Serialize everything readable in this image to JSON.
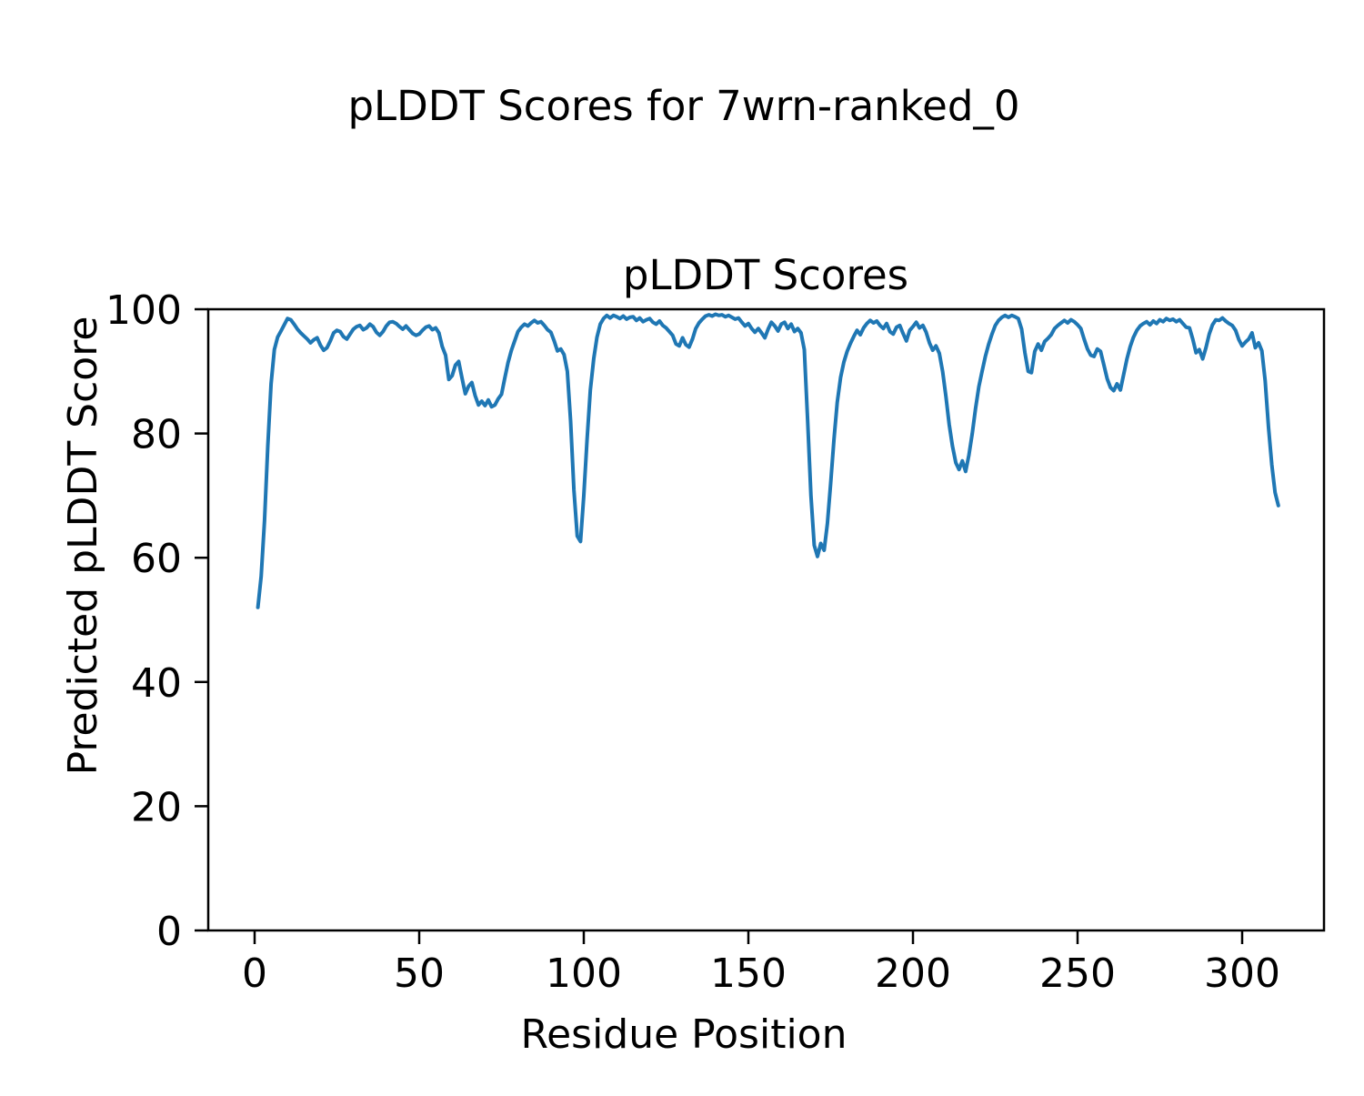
{
  "figure_title": "pLDDT Scores for 7wrn-ranked_0",
  "chart_data": {
    "type": "line",
    "title": "pLDDT Scores",
    "xlabel": "Residue Position",
    "ylabel": "Predicted pLDDT Score",
    "x_ticks": [
      0,
      50,
      100,
      150,
      200,
      250,
      300
    ],
    "y_ticks": [
      0,
      20,
      40,
      60,
      80,
      100
    ],
    "xlim": [
      -14.5,
      326.5
    ],
    "ylim": [
      0,
      100
    ],
    "grid": false,
    "legend": "none",
    "line_color": "#1f77b4",
    "series": [
      {
        "name": "pLDDT",
        "x_start": 1,
        "y": [
          52.0,
          57.0,
          66.0,
          78.0,
          88.0,
          93.5,
          95.5,
          96.5,
          97.5,
          98.5,
          98.3,
          97.6,
          96.8,
          96.2,
          95.7,
          95.2,
          94.6,
          95.1,
          95.4,
          94.2,
          93.4,
          93.8,
          94.9,
          96.2,
          96.6,
          96.4,
          95.6,
          95.2,
          96.0,
          96.8,
          97.2,
          97.4,
          96.7,
          97.0,
          97.6,
          97.2,
          96.3,
          95.8,
          96.4,
          97.3,
          97.9,
          98.0,
          97.7,
          97.2,
          96.8,
          97.3,
          96.7,
          96.1,
          95.8,
          96.0,
          96.6,
          97.1,
          97.3,
          96.7,
          97.0,
          96.2,
          94.0,
          92.6,
          88.7,
          89.3,
          91.0,
          91.6,
          88.9,
          86.4,
          87.6,
          88.2,
          86.1,
          84.6,
          85.2,
          84.5,
          85.4,
          84.3,
          84.6,
          85.6,
          86.3,
          88.9,
          91.4,
          93.4,
          94.9,
          96.4,
          97.1,
          97.6,
          97.3,
          97.8,
          98.2,
          97.8,
          98.0,
          97.4,
          96.7,
          96.3,
          94.9,
          93.3,
          93.6,
          92.7,
          90.0,
          82.0,
          71.0,
          63.5,
          62.6,
          70.0,
          79.0,
          87.0,
          92.0,
          95.5,
          97.6,
          98.5,
          99.0,
          98.6,
          99.0,
          98.8,
          98.5,
          98.9,
          98.4,
          98.7,
          98.8,
          98.2,
          98.6,
          98.0,
          98.3,
          98.5,
          97.9,
          97.6,
          98.1,
          97.4,
          97.0,
          96.4,
          95.8,
          94.4,
          94.1,
          95.4,
          94.3,
          93.9,
          95.2,
          96.9,
          97.8,
          98.4,
          98.9,
          99.1,
          98.9,
          99.2,
          99.0,
          99.1,
          98.8,
          99.0,
          98.7,
          98.4,
          98.6,
          97.9,
          97.3,
          97.7,
          96.9,
          96.3,
          96.9,
          96.2,
          95.4,
          96.8,
          97.9,
          97.3,
          96.5,
          97.6,
          97.9,
          96.9,
          97.6,
          96.4,
          96.9,
          96.2,
          93.5,
          82.0,
          70.0,
          62.0,
          60.2,
          62.3,
          61.2,
          65.5,
          72.0,
          79.0,
          85.0,
          89.0,
          91.5,
          93.2,
          94.5,
          95.6,
          96.6,
          95.9,
          97.0,
          97.7,
          98.2,
          97.8,
          98.1,
          97.4,
          96.9,
          97.7,
          96.4,
          96.0,
          97.1,
          97.4,
          96.1,
          94.9,
          96.6,
          97.2,
          97.9,
          97.0,
          97.4,
          96.3,
          94.6,
          93.4,
          94.1,
          92.9,
          90.0,
          86.0,
          81.5,
          78.0,
          75.3,
          74.2,
          75.6,
          73.9,
          76.5,
          80.0,
          84.0,
          87.5,
          90.0,
          92.4,
          94.4,
          96.0,
          97.4,
          98.2,
          98.7,
          99.0,
          98.7,
          99.0,
          98.8,
          98.5,
          96.8,
          93.0,
          90.0,
          89.8,
          93.2,
          94.4,
          93.4,
          94.8,
          95.3,
          95.9,
          96.9,
          97.4,
          97.8,
          98.2,
          97.8,
          98.3,
          98.0,
          97.5,
          96.9,
          95.2,
          93.6,
          92.6,
          92.4,
          93.6,
          93.2,
          91.0,
          88.8,
          87.4,
          86.9,
          88.0,
          87.0,
          89.5,
          92.0,
          94.0,
          95.5,
          96.6,
          97.3,
          97.7,
          98.0,
          97.5,
          98.1,
          97.7,
          98.3,
          98.0,
          98.5,
          98.2,
          98.4,
          98.0,
          98.3,
          97.7,
          97.1,
          97.0,
          95.2,
          93.0,
          93.5,
          92.0,
          93.8,
          96.0,
          97.5,
          98.3,
          98.2,
          98.6,
          98.1,
          97.7,
          97.4,
          96.6,
          95.1,
          94.1,
          94.7,
          95.2,
          96.2,
          93.8,
          94.6,
          93.3,
          88.5,
          81.0,
          75.0,
          70.5,
          68.4
        ]
      }
    ]
  }
}
